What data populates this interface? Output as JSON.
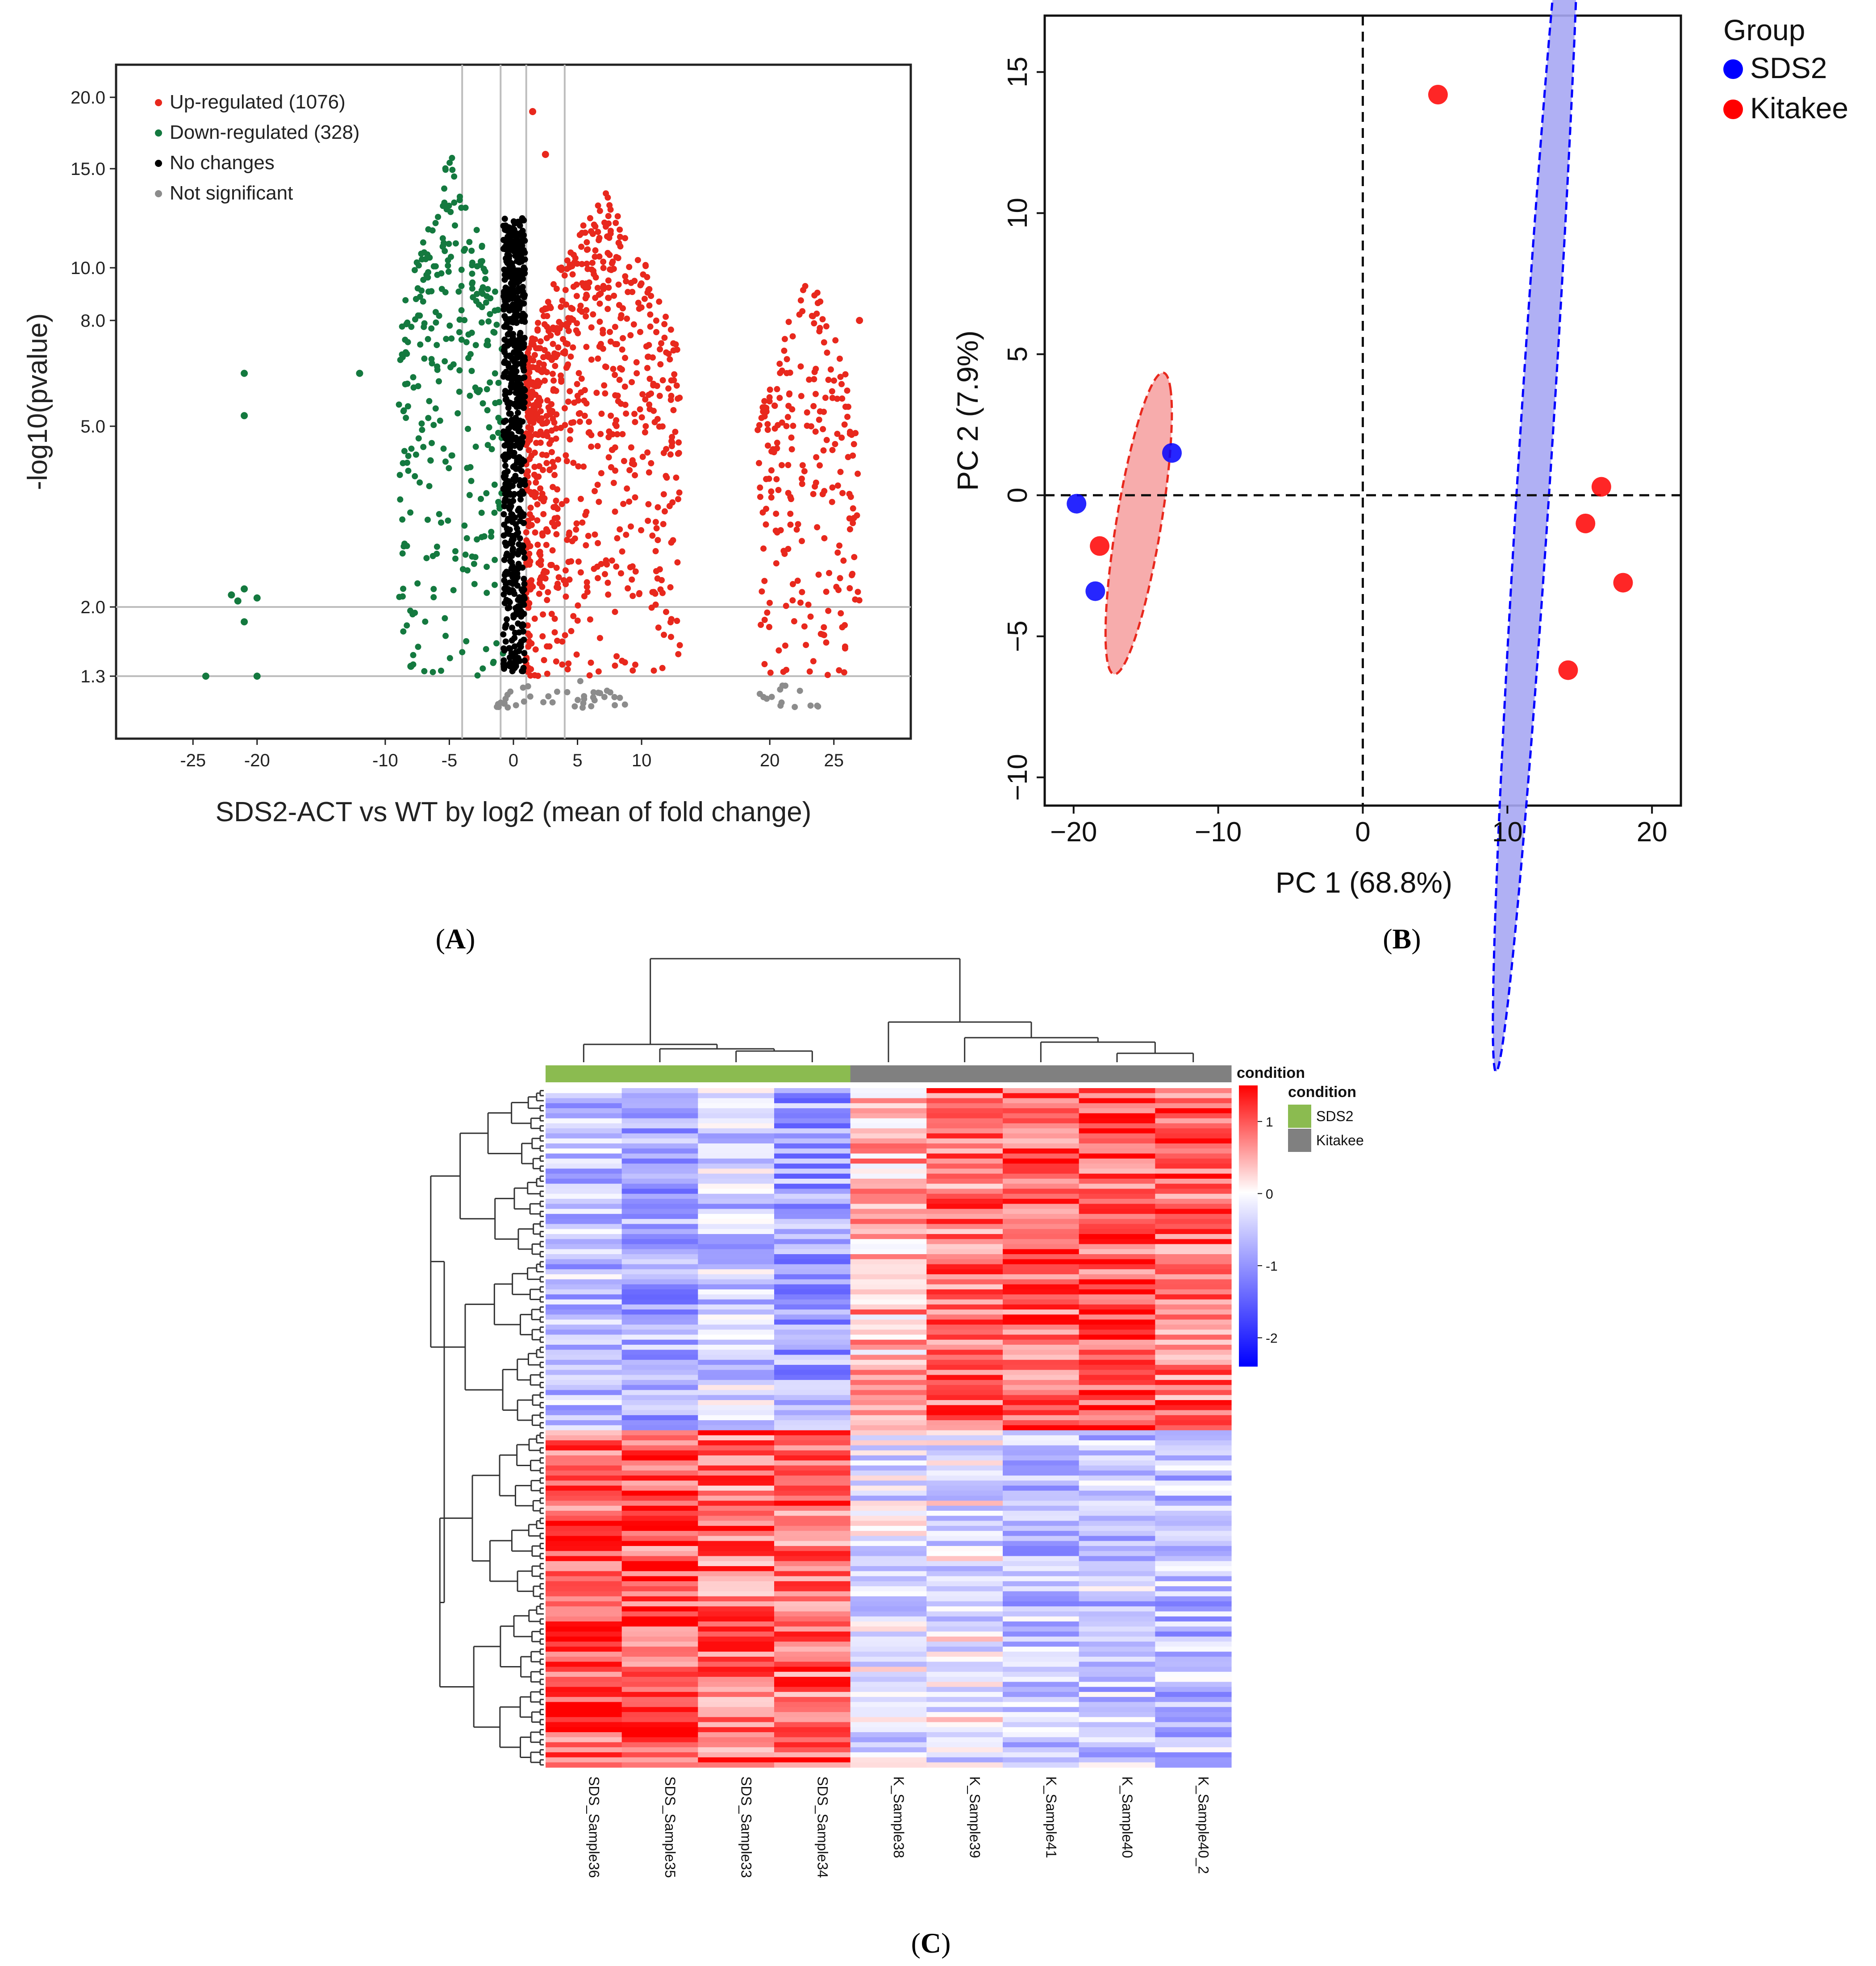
{
  "panel_labels": {
    "a": "A",
    "b": "B",
    "c": "C"
  },
  "chart_data": [
    {
      "panel": "A",
      "type": "scatter",
      "xlabel": "SDS2-ACT vs WT by log2 (mean of fold change)",
      "ylabel": "-log10(pvalue)",
      "xlim": [
        -31,
        31
      ],
      "x_ticks": [
        -25,
        -20,
        -10,
        -5,
        0,
        5,
        10,
        20,
        25
      ],
      "y_ticks": [
        "1.3",
        "2.0",
        "5.0",
        "8.0",
        "10.0",
        "15.0",
        "20.0"
      ],
      "y_tick_values": [
        1.3,
        2.0,
        5.0,
        8.0,
        10.0,
        15.0,
        20.0
      ],
      "vlines": [
        -4,
        -1,
        1,
        4
      ],
      "hlines": [
        1.3,
        2.0
      ],
      "series": [
        {
          "name": "Up-regulated",
          "label": "Up-regulated (1076)",
          "count": 1076,
          "color": "#e8281d"
        },
        {
          "name": "Down-regulated",
          "label": "Down-regulated (328)",
          "count": 328,
          "color": "#14793f"
        },
        {
          "name": "No changes",
          "label": "No changes",
          "color": "#000000"
        },
        {
          "name": "Not significant",
          "label": "Not significant",
          "color": "#8c8c8c"
        }
      ],
      "clusters": [
        {
          "series": "Up-regulated",
          "x_range": [
            1,
            13
          ],
          "y_range": [
            1.3,
            14.0
          ],
          "n": 800
        },
        {
          "series": "Up-regulated",
          "x_range": [
            19,
            27
          ],
          "y_range": [
            1.3,
            10.0
          ],
          "n": 230
        },
        {
          "series": "Down-regulated",
          "x_range": [
            -9,
            -0.8
          ],
          "y_range": [
            1.3,
            16.0
          ],
          "n": 300
        },
        {
          "series": "No changes",
          "x_range": [
            -0.8,
            0.9
          ],
          "y_range": [
            1.35,
            12.5
          ],
          "n": 650
        },
        {
          "series": "Not significant",
          "x_range": [
            -1.5,
            9
          ],
          "y_range": [
            1.0,
            1.3
          ],
          "n": 40
        },
        {
          "series": "Not significant",
          "x_range": [
            19,
            24
          ],
          "y_range": [
            1.0,
            1.3
          ],
          "n": 14
        }
      ],
      "outliers": [
        {
          "series": "Down-regulated",
          "x": -21,
          "y": 6.5
        },
        {
          "series": "Down-regulated",
          "x": -21,
          "y": 5.3
        },
        {
          "series": "Down-regulated",
          "x": -21,
          "y": 2.3
        },
        {
          "series": "Down-regulated",
          "x": -22,
          "y": 2.2
        },
        {
          "series": "Down-regulated",
          "x": -21.5,
          "y": 2.1
        },
        {
          "series": "Down-regulated",
          "x": -20,
          "y": 2.15
        },
        {
          "series": "Down-regulated",
          "x": -21,
          "y": 1.85
        },
        {
          "series": "Down-regulated",
          "x": -24,
          "y": 1.3
        },
        {
          "series": "Down-regulated",
          "x": -20,
          "y": 1.3
        },
        {
          "series": "Down-regulated",
          "x": -12,
          "y": 6.5
        },
        {
          "series": "Down-regulated",
          "x": -8,
          "y": 1.4
        },
        {
          "series": "Up-regulated",
          "x": 1.5,
          "y": 19.0
        },
        {
          "series": "Up-regulated",
          "x": 2.5,
          "y": 16.0
        },
        {
          "series": "Up-regulated",
          "x": 27,
          "y": 8.0
        }
      ],
      "legend_position": "top-left"
    },
    {
      "panel": "B",
      "type": "scatter",
      "xlabel": "PC 1 (68.8%)",
      "ylabel": "PC 2 (7.9%)",
      "xlim": [
        -22,
        22
      ],
      "ylim": [
        -11,
        17
      ],
      "x_ticks": [
        "−20",
        "−10",
        "0",
        "10",
        "20"
      ],
      "x_tick_values": [
        -20,
        -10,
        0,
        10,
        20
      ],
      "y_ticks": [
        "−10",
        "−5",
        "0",
        "5",
        "10",
        "15"
      ],
      "y_tick_values": [
        -10,
        -5,
        0,
        5,
        10,
        15
      ],
      "legend_title": "Group",
      "legend_position": "right",
      "series": [
        {
          "name": "SDS2",
          "color": "#0000ff",
          "points": [
            [
              -19.8,
              -0.3
            ],
            [
              -13.2,
              1.5
            ],
            [
              -18.5,
              -3.4
            ]
          ],
          "ellipse": {
            "center": [
              -15.5,
              -1.0
            ],
            "semi_axes": [
              3.1,
              8.2
            ],
            "angle_deg": 55,
            "fill": "#f6a3a3",
            "stroke": "#e8281d"
          }
        },
        {
          "name": "Kitakee",
          "color": "#ff0000",
          "points": [
            [
              5.2,
              14.2
            ],
            [
              16.5,
              0.3
            ],
            [
              15.4,
              -1.0
            ],
            [
              18.0,
              -3.1
            ],
            [
              14.2,
              -6.2
            ],
            [
              -18.2,
              -1.8
            ]
          ],
          "ellipse": {
            "center": [
              12.0,
              2.0
            ],
            "semi_axes": [
              3.2,
              24.0
            ],
            "angle_deg": 21,
            "fill": "#a7a7f3",
            "stroke": "#0000ff"
          }
        }
      ]
    },
    {
      "panel": "C",
      "type": "heatmap",
      "columns": [
        "SDS_Sample36",
        "SDS_Sample35",
        "SDS_Sample33",
        "SDS_Sample34",
        "K_Sample38",
        "K_Sample39",
        "K_Sample41",
        "K_Sample40",
        "K_Sample40_2"
      ],
      "column_condition": [
        "SDS2",
        "SDS2",
        "SDS2",
        "SDS2",
        "Kitakee",
        "Kitakee",
        "Kitakee",
        "Kitakee",
        "Kitakee"
      ],
      "annotation_title": "condition",
      "annotation_legend_title": "condition",
      "conditions": [
        {
          "name": "SDS2",
          "color": "#8bbb50"
        },
        {
          "name": "Kitakee",
          "color": "#808080"
        }
      ],
      "colorbar_ticks": [
        "1",
        "0",
        "-1",
        "-2"
      ],
      "colorbar_tick_values": [
        1,
        0,
        -1,
        -2
      ],
      "colorbar_range": [
        -2.4,
        1.5
      ],
      "n_rows": 135,
      "row_clusters": [
        {
          "rows": [
            0,
            67
          ],
          "column_means": [
            -0.6,
            -0.8,
            -0.5,
            -0.9,
            0.45,
            0.85,
            1.0,
            1.0,
            0.9
          ]
        },
        {
          "rows": [
            68,
            134
          ],
          "column_means": [
            1.0,
            1.0,
            0.85,
            0.9,
            -0.3,
            -0.2,
            -0.6,
            -0.55,
            -0.6
          ]
        }
      ],
      "colors": {
        "high": "#ff0000",
        "mid": "#ffffff",
        "low": "#0000ff"
      }
    }
  ]
}
